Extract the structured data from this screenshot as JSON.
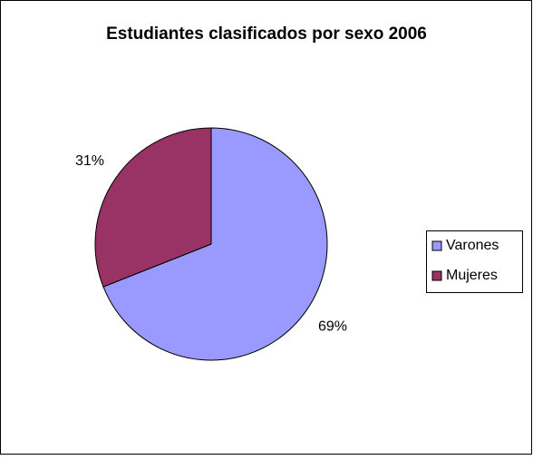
{
  "chart_data": {
    "type": "pie",
    "title": "Estudiantes clasificados por sexo 2006",
    "categories": [
      "Varones",
      "Mujeres"
    ],
    "values": [
      69,
      31
    ],
    "value_labels": [
      "69%",
      "31%"
    ],
    "colors": [
      "#9999ff",
      "#993366"
    ],
    "legend": "right"
  }
}
